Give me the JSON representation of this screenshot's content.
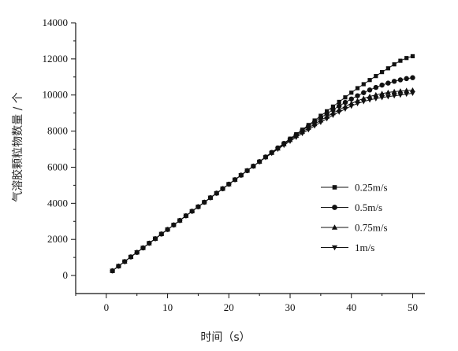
{
  "chart_data": {
    "type": "line",
    "title": "",
    "xlabel": "时间（s）",
    "ylabel": "气溶胶颗粒物数量 / 个",
    "xlim": [
      -5,
      52
    ],
    "ylim": [
      -1000,
      14000
    ],
    "xticks": [
      0,
      10,
      20,
      30,
      40,
      50
    ],
    "yticks": [
      0,
      2000,
      4000,
      6000,
      8000,
      10000,
      12000,
      14000
    ],
    "grid": false,
    "legend_position": "right",
    "x": [
      1,
      2,
      3,
      4,
      5,
      6,
      7,
      8,
      9,
      10,
      11,
      12,
      13,
      14,
      15,
      16,
      17,
      18,
      19,
      20,
      21,
      22,
      23,
      24,
      25,
      26,
      27,
      28,
      29,
      30,
      31,
      32,
      33,
      34,
      35,
      36,
      37,
      38,
      39,
      40,
      41,
      42,
      43,
      44,
      45,
      46,
      47,
      48,
      49,
      50
    ],
    "series": [
      {
        "name": "0.25m/s",
        "marker": "square",
        "values": [
          260,
          520,
          770,
          1030,
          1280,
          1530,
          1790,
          2040,
          2300,
          2550,
          2800,
          3050,
          3310,
          3560,
          3810,
          4060,
          4310,
          4560,
          4810,
          5060,
          5310,
          5560,
          5810,
          6060,
          6310,
          6570,
          6820,
          7070,
          7320,
          7580,
          7830,
          8080,
          8340,
          8590,
          8850,
          9100,
          9360,
          9620,
          9870,
          10130,
          10380,
          10600,
          10830,
          11050,
          11270,
          11480,
          11700,
          11900,
          12050,
          12150
        ]
      },
      {
        "name": "0.5m/s",
        "marker": "circle",
        "values": [
          260,
          520,
          770,
          1030,
          1280,
          1530,
          1790,
          2040,
          2300,
          2550,
          2800,
          3050,
          3310,
          3560,
          3810,
          4060,
          4310,
          4560,
          4810,
          5060,
          5310,
          5560,
          5810,
          6060,
          6310,
          6570,
          6820,
          7070,
          7320,
          7560,
          7800,
          8040,
          8280,
          8510,
          8740,
          8960,
          9180,
          9390,
          9590,
          9780,
          9960,
          10130,
          10280,
          10420,
          10550,
          10660,
          10760,
          10840,
          10910,
          10960
        ]
      },
      {
        "name": "0.75m/s",
        "marker": "triangle-up",
        "values": [
          260,
          520,
          770,
          1030,
          1280,
          1530,
          1790,
          2040,
          2300,
          2550,
          2800,
          3050,
          3310,
          3560,
          3810,
          4060,
          4310,
          4560,
          4810,
          5060,
          5310,
          5560,
          5810,
          6060,
          6310,
          6560,
          6800,
          7040,
          7280,
          7510,
          7740,
          7960,
          8180,
          8390,
          8600,
          8800,
          9000,
          9180,
          9360,
          9530,
          9680,
          9810,
          9920,
          10010,
          10080,
          10140,
          10190,
          10220,
          10250,
          10270
        ]
      },
      {
        "name": "1m/s",
        "marker": "triangle-down",
        "values": [
          260,
          520,
          770,
          1030,
          1280,
          1530,
          1790,
          2040,
          2300,
          2550,
          2800,
          3050,
          3310,
          3560,
          3810,
          4060,
          4310,
          4560,
          4810,
          5060,
          5310,
          5560,
          5810,
          6060,
          6300,
          6540,
          6770,
          7000,
          7220,
          7440,
          7660,
          7870,
          8080,
          8290,
          8490,
          8690,
          8880,
          9060,
          9230,
          9390,
          9530,
          9640,
          9730,
          9800,
          9860,
          9910,
          9960,
          10000,
          10050,
          10100
        ]
      }
    ]
  }
}
